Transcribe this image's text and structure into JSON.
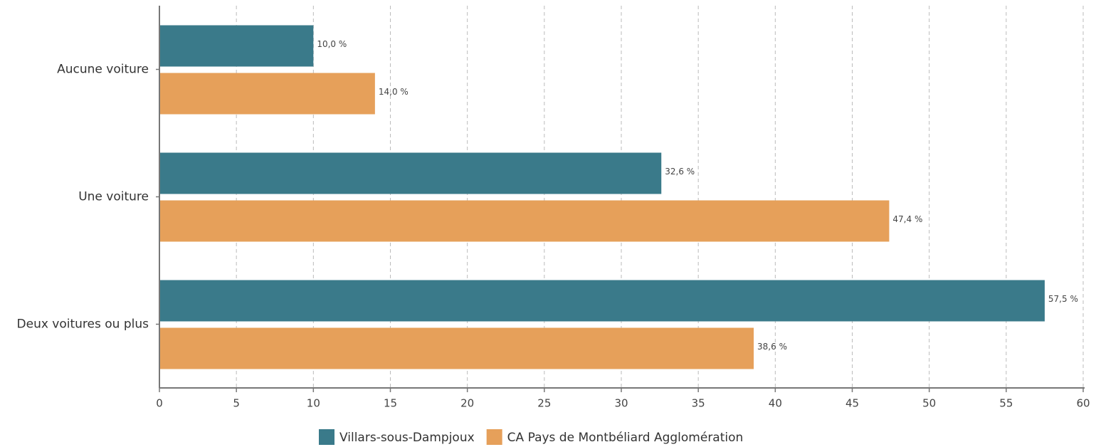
{
  "chart_data": {
    "type": "bar",
    "orientation": "horizontal",
    "categories": [
      "Aucune voiture",
      "Une voiture",
      "Deux voitures ou plus"
    ],
    "series": [
      {
        "name": "Villars-sous-Dampjoux",
        "color": "#3a7a8a",
        "values": [
          10.0,
          32.6,
          57.5
        ],
        "value_labels": [
          "10,0 %",
          "32,6 %",
          "57,5 %"
        ]
      },
      {
        "name": "CA Pays de Montbéliard Agglomération",
        "color": "#e6a05a",
        "values": [
          14.0,
          47.4,
          38.6
        ],
        "value_labels": [
          "14,0 %",
          "47,4 %",
          "38,6 %"
        ]
      }
    ],
    "xlim": [
      0,
      60
    ],
    "xticks": [
      0,
      5,
      10,
      15,
      20,
      25,
      30,
      35,
      40,
      45,
      50,
      55,
      60
    ],
    "grid": true
  }
}
